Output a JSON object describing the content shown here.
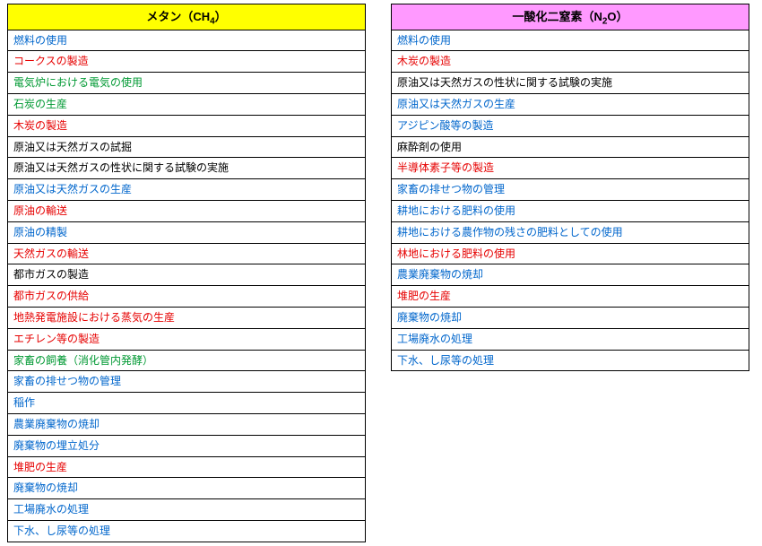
{
  "left": {
    "header": {
      "prefix": "メタン（CH",
      "sub": "4",
      "suffix": "）",
      "bg": "#ffff00"
    },
    "rows": [
      {
        "text": "燃料の使用",
        "color": "#0066cc"
      },
      {
        "text": "コークスの製造",
        "color": "#e60000"
      },
      {
        "text": "電気炉における電気の使用",
        "color": "#009933"
      },
      {
        "text": "石炭の生産",
        "color": "#009933"
      },
      {
        "text": "木炭の製造",
        "color": "#e60000"
      },
      {
        "text": "原油又は天然ガスの試掘",
        "color": "#000000"
      },
      {
        "text": "原油又は天然ガスの性状に関する試験の実施",
        "color": "#000000"
      },
      {
        "text": "原油又は天然ガスの生産",
        "color": "#0066cc"
      },
      {
        "text": "原油の輸送",
        "color": "#e60000"
      },
      {
        "text": "原油の精製",
        "color": "#0066cc"
      },
      {
        "text": "天然ガスの輸送",
        "color": "#e60000"
      },
      {
        "text": "都市ガスの製造",
        "color": "#000000"
      },
      {
        "text": "都市ガスの供給",
        "color": "#e60000"
      },
      {
        "text": "地熱発電施設における蒸気の生産",
        "color": "#e60000"
      },
      {
        "text": "エチレン等の製造",
        "color": "#e60000"
      },
      {
        "text": "家畜の飼養（消化管内発酵）",
        "color": "#009933"
      },
      {
        "text": "家畜の排せつ物の管理",
        "color": "#0066cc"
      },
      {
        "text": "稲作",
        "color": "#0066cc"
      },
      {
        "text": "農業廃棄物の焼却",
        "color": "#0066cc"
      },
      {
        "text": "廃棄物の埋立処分",
        "color": "#0066cc"
      },
      {
        "text": "堆肥の生産",
        "color": "#e60000"
      },
      {
        "text": "廃棄物の焼却",
        "color": "#0066cc"
      },
      {
        "text": "工場廃水の処理",
        "color": "#0066cc"
      },
      {
        "text": "下水、し尿等の処理",
        "color": "#0066cc"
      }
    ]
  },
  "right": {
    "header": {
      "prefix": "一酸化二窒素（N",
      "sub": "2",
      "suffix": "O）",
      "bg": "#ff99ff"
    },
    "rows": [
      {
        "text": "燃料の使用",
        "color": "#0066cc"
      },
      {
        "text": "木炭の製造",
        "color": "#e60000"
      },
      {
        "text": "原油又は天然ガスの性状に関する試験の実施",
        "color": "#000000"
      },
      {
        "text": "原油又は天然ガスの生産",
        "color": "#0066cc"
      },
      {
        "text": "アジピン酸等の製造",
        "color": "#0066cc"
      },
      {
        "text": "麻酔剤の使用",
        "color": "#000000"
      },
      {
        "text": "半導体素子等の製造",
        "color": "#e60000"
      },
      {
        "text": "家畜の排せつ物の管理",
        "color": "#0066cc"
      },
      {
        "text": "耕地における肥料の使用",
        "color": "#0066cc"
      },
      {
        "text": "耕地における農作物の残さの肥料としての使用",
        "color": "#0066cc"
      },
      {
        "text": "林地における肥料の使用",
        "color": "#e60000"
      },
      {
        "text": "農業廃棄物の焼却",
        "color": "#0066cc"
      },
      {
        "text": "堆肥の生産",
        "color": "#e60000"
      },
      {
        "text": "廃棄物の焼却",
        "color": "#0066cc"
      },
      {
        "text": "工場廃水の処理",
        "color": "#0066cc"
      },
      {
        "text": "下水、し尿等の処理",
        "color": "#0066cc"
      }
    ]
  }
}
